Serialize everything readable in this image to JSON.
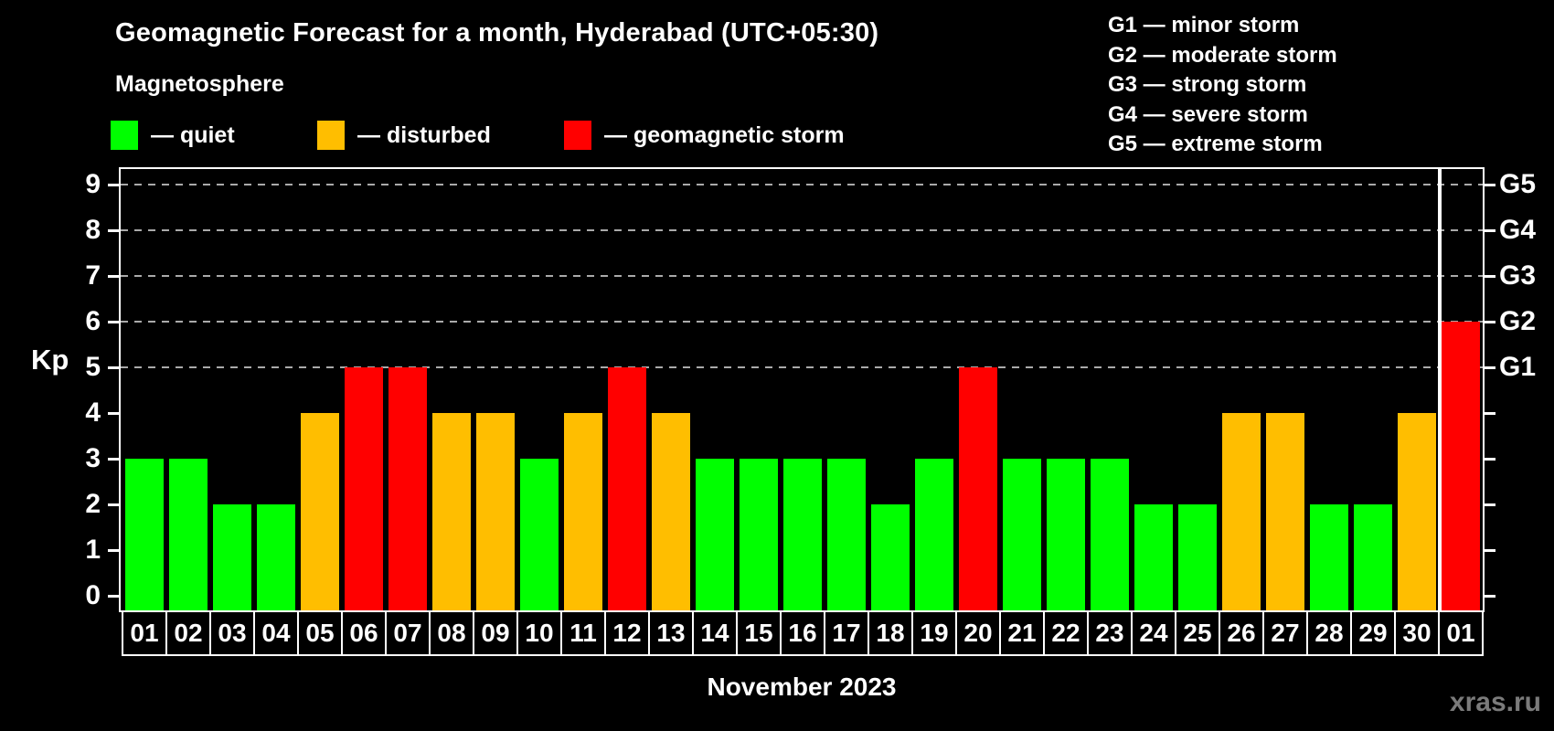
{
  "header": {
    "title": "Geomagnetic Forecast for a month, Hyderabad (UTC+05:30)",
    "subtitle": "Magnetosphere"
  },
  "legend": {
    "items": [
      {
        "name": "quiet",
        "label": "— quiet",
        "color": "#00ff00"
      },
      {
        "name": "disturbed",
        "label": "— disturbed",
        "color": "#ffbe00"
      },
      {
        "name": "geomagnetic-storm",
        "label": "— geomagnetic storm",
        "color": "#ff0000"
      }
    ]
  },
  "g_scale": {
    "items": [
      {
        "text": "G1 — minor storm"
      },
      {
        "text": "G2 — moderate storm"
      },
      {
        "text": "G3 — strong storm"
      },
      {
        "text": "G4 — severe storm"
      },
      {
        "text": "G5 — extreme storm"
      }
    ]
  },
  "axes": {
    "y_label": "Kp",
    "y_ticks": [
      0,
      1,
      2,
      3,
      4,
      5,
      6,
      7,
      8,
      9
    ],
    "right_labels": [
      {
        "label": "G1",
        "kp": 5
      },
      {
        "label": "G2",
        "kp": 6
      },
      {
        "label": "G3",
        "kp": 7
      },
      {
        "label": "G4",
        "kp": 8
      },
      {
        "label": "G5",
        "kp": 9
      }
    ],
    "x_label": "November 2023"
  },
  "watermark": "xras.ru",
  "chart_data": {
    "type": "bar",
    "title": "Geomagnetic Forecast for a month, Hyderabad (UTC+05:30)",
    "xlabel": "November 2023",
    "ylabel": "Kp",
    "ylim": [
      -0.32,
      9.4
    ],
    "grid_levels": [
      5,
      6,
      7,
      8,
      9
    ],
    "legend_position": "top-left",
    "categories": [
      "01",
      "02",
      "03",
      "04",
      "05",
      "06",
      "07",
      "08",
      "09",
      "10",
      "11",
      "12",
      "13",
      "14",
      "15",
      "16",
      "17",
      "18",
      "19",
      "20",
      "21",
      "22",
      "23",
      "24",
      "25",
      "26",
      "27",
      "28",
      "29",
      "30",
      "01"
    ],
    "values": [
      3,
      3,
      2,
      2,
      4,
      5,
      5,
      4,
      4,
      3,
      4,
      5,
      4,
      3,
      3,
      3,
      3,
      2,
      3,
      5,
      3,
      3,
      3,
      2,
      2,
      4,
      4,
      2,
      2,
      4,
      6
    ],
    "statuses": [
      "quiet",
      "quiet",
      "quiet",
      "quiet",
      "disturbed",
      "storm",
      "storm",
      "disturbed",
      "disturbed",
      "quiet",
      "disturbed",
      "storm",
      "disturbed",
      "quiet",
      "quiet",
      "quiet",
      "quiet",
      "quiet",
      "quiet",
      "storm",
      "quiet",
      "quiet",
      "quiet",
      "quiet",
      "quiet",
      "disturbed",
      "disturbed",
      "quiet",
      "quiet",
      "disturbed",
      "storm"
    ],
    "colors": {
      "quiet": "#00ff00",
      "disturbed": "#ffbe00",
      "storm": "#ff0000"
    },
    "month_separator_before_index": 30
  }
}
